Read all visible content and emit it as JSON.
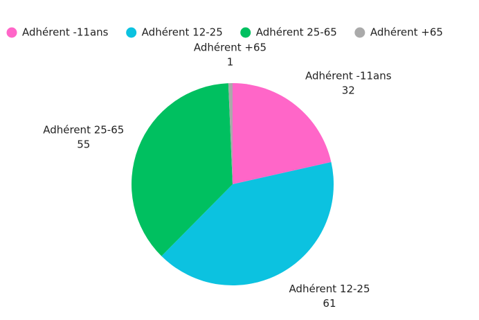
{
  "chart_data": {
    "type": "pie",
    "categories": [
      "Adhérent -11ans",
      "Adhérent 12-25",
      "Adhérent 25-65",
      "Adhérent +65"
    ],
    "values": [
      32,
      61,
      55,
      1
    ],
    "colors": [
      "#ff66c8",
      "#0cc2e0",
      "#00c060",
      "#aaaaaa"
    ],
    "legend": "top"
  }
}
